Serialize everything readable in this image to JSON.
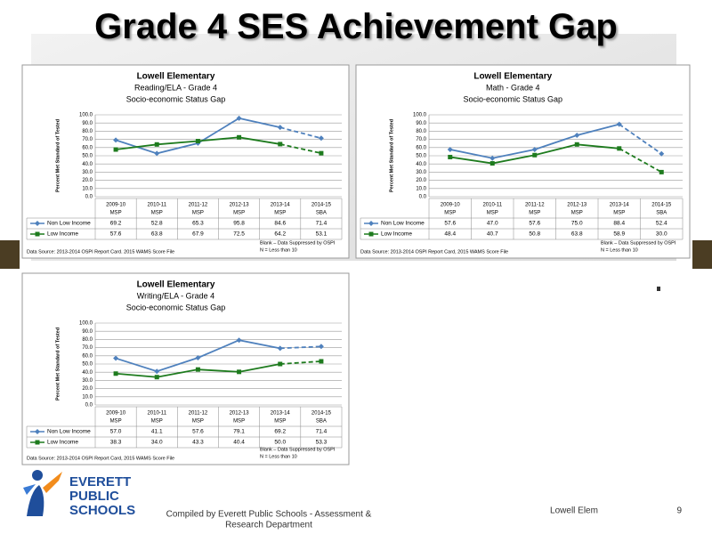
{
  "slide": {
    "title": "Grade 4 SES Achievement Gap",
    "logo": [
      "EVERETT",
      "PUBLIC",
      "SCHOOLS"
    ],
    "footer": [
      "Compiled by Everett Public Schools - Assessment &",
      "Research Department"
    ],
    "school": "Lowell Elem",
    "page": "9"
  },
  "chart_data": [
    {
      "type": "line",
      "title": "Lowell Elementary",
      "subtitles": [
        "Reading/ELA - Grade 4",
        "Socio-economic Status Gap"
      ],
      "y_label": "Percent Met Standard of Tested",
      "categories": [
        "2009-10",
        "2010-11",
        "2011-12",
        "2012-13",
        "2013-14",
        "2014-15"
      ],
      "tests": [
        "MSP",
        "MSP",
        "MSP",
        "MSP",
        "MSP",
        "SBA"
      ],
      "ylim": [
        0,
        100
      ],
      "yticks": [
        {
          "value": 0,
          "label": "0.0"
        },
        {
          "value": 10,
          "label": "10.0"
        },
        {
          "value": 20,
          "label": "20.0"
        },
        {
          "value": 30,
          "label": "30.0"
        },
        {
          "value": 40,
          "label": "40.0"
        },
        {
          "value": 50,
          "label": "50.0"
        },
        {
          "value": 60,
          "label": "60.0"
        },
        {
          "value": 70,
          "label": "70.0"
        },
        {
          "value": 80,
          "label": "80.0"
        },
        {
          "value": 90,
          "label": "90.0"
        },
        {
          "value": 100,
          "label": "100.0"
        }
      ],
      "grid": true,
      "dashed_segments": [
        4
      ],
      "series": [
        {
          "name": "Non Low Income",
          "color": "#4f81bd",
          "marker": "diamond",
          "values": [
            69.2,
            52.8,
            65.3,
            95.8,
            84.6,
            71.4
          ],
          "value_labels": [
            "69.2",
            "52.8",
            "65.3",
            "95.8",
            "84.6",
            "71.4"
          ]
        },
        {
          "name": "Low Income",
          "color": "#1e7b1e",
          "marker": "square",
          "values": [
            57.6,
            63.8,
            67.9,
            72.5,
            64.2,
            53.1
          ],
          "value_labels": [
            "57.6",
            "63.8",
            "67.9",
            "72.5",
            "64.2",
            "53.1"
          ]
        }
      ],
      "source": "Data Source: 2013-2014 OSPI Report Card. 2015 WAMS Score File",
      "notes": [
        "Blank – Data Suppressed by OSPI",
        "N = Less than 10"
      ]
    },
    {
      "type": "line",
      "title": "Lowell Elementary",
      "subtitles": [
        "Math - Grade 4",
        "Socio-economic Status Gap"
      ],
      "y_label": "Percent Met Standard of Tested",
      "categories": [
        "2009-10",
        "2010-11",
        "2011-12",
        "2012-13",
        "2013-14",
        "2014-15"
      ],
      "tests": [
        "MSP",
        "MSP",
        "MSP",
        "MSP",
        "MSP",
        "SBA"
      ],
      "ylim": [
        0,
        100
      ],
      "yticks": [
        {
          "value": 0,
          "label": "0.0"
        },
        {
          "value": 10,
          "label": "10.0"
        },
        {
          "value": 20,
          "label": "20.0"
        },
        {
          "value": 30,
          "label": "30.0"
        },
        {
          "value": 40,
          "label": "40.0"
        },
        {
          "value": 50,
          "label": "50.0"
        },
        {
          "value": 60,
          "label": "60.0"
        },
        {
          "value": 70,
          "label": "70.0"
        },
        {
          "value": 80,
          "label": "80.0"
        },
        {
          "value": 90,
          "label": "90.0"
        },
        {
          "value": 100,
          "label": "100.0"
        }
      ],
      "grid": true,
      "dashed_segments": [
        4
      ],
      "series": [
        {
          "name": "Non Low Income",
          "color": "#4f81bd",
          "marker": "diamond",
          "values": [
            57.6,
            47,
            57.6,
            75,
            88.4,
            52.4
          ],
          "value_labels": [
            "57.6",
            "47.0",
            "57.6",
            "75.0",
            "88.4",
            "52.4"
          ]
        },
        {
          "name": "Low Income",
          "color": "#1e7b1e",
          "marker": "square",
          "values": [
            48.4,
            40.7,
            50.8,
            63.8,
            58.9,
            30
          ],
          "value_labels": [
            "48.4",
            "40.7",
            "50.8",
            "63.8",
            "58.9",
            "30.0"
          ]
        }
      ],
      "source": "Data Source: 2013-2014 OSPI Report Card, 2015 WAMS Score File",
      "notes": [
        "Blank – Data Suppressed by OSPI",
        "N = Less than 10"
      ]
    },
    {
      "type": "line",
      "title": "Lowell Elementary",
      "subtitles": [
        "Writing/ELA - Grade 4",
        "Socio-economic Status Gap"
      ],
      "y_label": "Percent Met Standard of Tested",
      "categories": [
        "2009-10",
        "2010-11",
        "2011-12",
        "2012-13",
        "2013-14",
        "2014-15"
      ],
      "tests": [
        "MSP",
        "MSP",
        "MSP",
        "MSP",
        "MSP",
        "SBA"
      ],
      "ylim": [
        0,
        100
      ],
      "yticks": [
        {
          "value": 0,
          "label": "0.0"
        },
        {
          "value": 10,
          "label": "10.0"
        },
        {
          "value": 20,
          "label": "20.0"
        },
        {
          "value": 30,
          "label": "30.0"
        },
        {
          "value": 40,
          "label": "40.0"
        },
        {
          "value": 50,
          "label": "50.0"
        },
        {
          "value": 60,
          "label": "60.0"
        },
        {
          "value": 70,
          "label": "70.0"
        },
        {
          "value": 80,
          "label": "80.0"
        },
        {
          "value": 90,
          "label": "90.0"
        },
        {
          "value": 100,
          "label": "100.0"
        }
      ],
      "grid": true,
      "dashed_segments": [
        4
      ],
      "series": [
        {
          "name": "Non Low Income",
          "color": "#4f81bd",
          "marker": "diamond",
          "values": [
            57,
            41.1,
            57.6,
            79.1,
            69.2,
            71.4
          ],
          "value_labels": [
            "57.0",
            "41.1",
            "57.6",
            "79.1",
            "69.2",
            "71.4"
          ]
        },
        {
          "name": "Low Income",
          "color": "#1e7b1e",
          "marker": "square",
          "values": [
            38.3,
            34,
            43.3,
            40.4,
            50,
            53.3
          ],
          "value_labels": [
            "38.3",
            "34.0",
            "43.3",
            "40.4",
            "50.0",
            "53.3"
          ]
        }
      ],
      "source": "Data Source: 2013-2014 OSPI Report Card, 2015 WAMS Score File",
      "notes": [
        "Blank – Data Suppressed by OSPI",
        "N = Less than 10"
      ]
    }
  ]
}
